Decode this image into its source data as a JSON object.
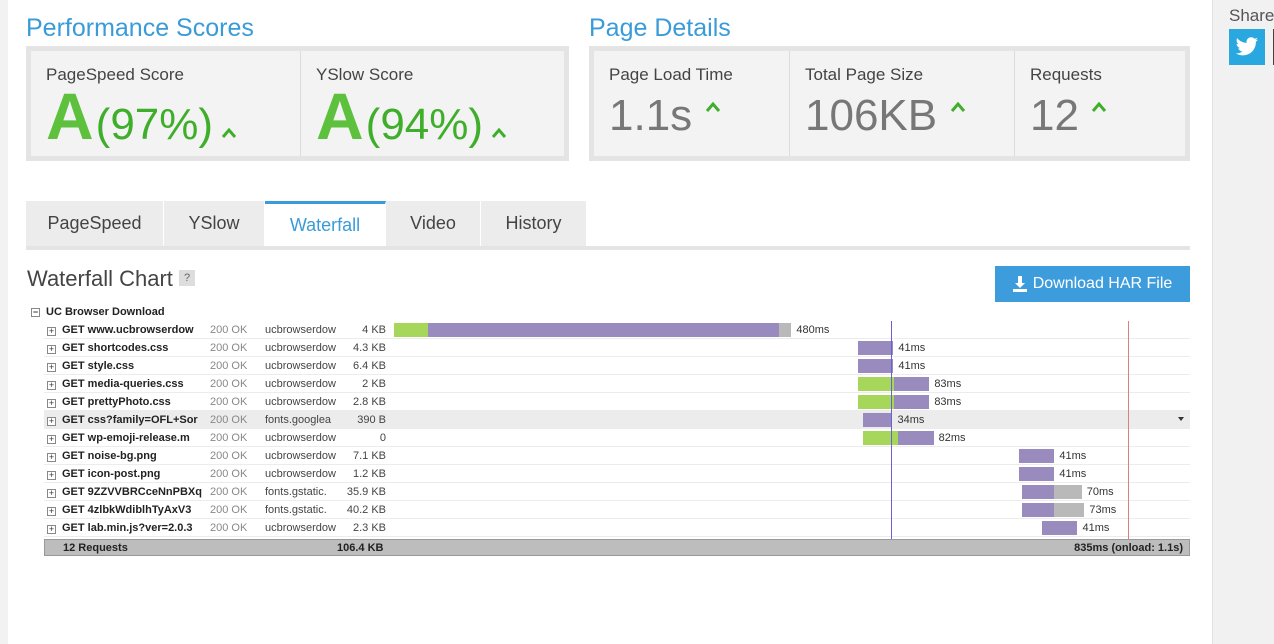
{
  "performance": {
    "title": "Performance Scores",
    "pagespeed": {
      "label": "PageSpeed Score",
      "grade": "A",
      "percent": "(97%)"
    },
    "yslow": {
      "label": "YSlow Score",
      "grade": "A",
      "percent": "(94%)"
    }
  },
  "details": {
    "title": "Page Details",
    "load_time": {
      "label": "Page Load Time",
      "value": "1.1s"
    },
    "page_size": {
      "label": "Total Page Size",
      "value": "106KB"
    },
    "requests": {
      "label": "Requests",
      "value": "12"
    }
  },
  "tabs": [
    {
      "label": "PageSpeed",
      "active": false
    },
    {
      "label": "YSlow",
      "active": false
    },
    {
      "label": "Waterfall",
      "active": true
    },
    {
      "label": "Video",
      "active": false
    },
    {
      "label": "History",
      "active": false
    }
  ],
  "waterfall": {
    "title": "Waterfall Chart",
    "help": "?",
    "download_label": "Download HAR File",
    "root_label": "UC Browser Download",
    "timeline_start_ms": 0,
    "timeline_end_ms": 835,
    "dom_loaded_ms": 580,
    "onload_ms": 1100,
    "rows": [
      {
        "url": "GET www.ucbrowserdow",
        "status": "200 OK",
        "domain": "ucbrowserdow",
        "size": "4 KB",
        "start": 0,
        "connect": 40,
        "wait": 410,
        "recv": 14,
        "timing": "480ms"
      },
      {
        "url": "GET shortcodes.css",
        "status": "200 OK",
        "domain": "ucbrowserdow",
        "size": "4.3 KB",
        "start": 542,
        "connect": 0,
        "wait": 41,
        "recv": 0,
        "timing": "41ms"
      },
      {
        "url": "GET style.css",
        "status": "200 OK",
        "domain": "ucbrowserdow",
        "size": "6.4 KB",
        "start": 542,
        "connect": 0,
        "wait": 41,
        "recv": 0,
        "timing": "41ms"
      },
      {
        "url": "GET media-queries.css",
        "status": "200 OK",
        "domain": "ucbrowserdow",
        "size": "2 KB",
        "start": 542,
        "connect": 42,
        "wait": 41,
        "recv": 0,
        "timing": "83ms"
      },
      {
        "url": "GET prettyPhoto.css",
        "status": "200 OK",
        "domain": "ucbrowserdow",
        "size": "2.8 KB",
        "start": 542,
        "connect": 42,
        "wait": 41,
        "recv": 0,
        "timing": "83ms"
      },
      {
        "url": "GET css?family=OFL+Sor",
        "status": "200 OK",
        "domain": "fonts.googlea",
        "size": "390 B",
        "start": 548,
        "connect": 0,
        "wait": 34,
        "recv": 0,
        "timing": "34ms",
        "highlight": true
      },
      {
        "url": "GET wp-emoji-release.m",
        "status": "200 OK",
        "domain": "ucbrowserdow",
        "size": "0",
        "start": 548,
        "connect": 40,
        "wait": 42,
        "recv": 0,
        "timing": "82ms"
      },
      {
        "url": "GET noise-bg.png",
        "status": "200 OK",
        "domain": "ucbrowserdow",
        "size": "7.1 KB",
        "start": 730,
        "connect": 0,
        "wait": 41,
        "recv": 0,
        "timing": "41ms"
      },
      {
        "url": "GET icon-post.png",
        "status": "200 OK",
        "domain": "ucbrowserdow",
        "size": "1.2 KB",
        "start": 730,
        "connect": 0,
        "wait": 41,
        "recv": 0,
        "timing": "41ms"
      },
      {
        "url": "GET 9ZZVVBRCceNnPBXq",
        "status": "200 OK",
        "domain": "fonts.gstatic.",
        "size": "35.9 KB",
        "start": 733,
        "connect": 0,
        "wait": 38,
        "recv": 32,
        "timing": "70ms"
      },
      {
        "url": "GET 4zlbkWdiblhTyAxV3",
        "status": "200 OK",
        "domain": "fonts.gstatic.",
        "size": "40.2 KB",
        "start": 733,
        "connect": 0,
        "wait": 38,
        "recv": 35,
        "timing": "73ms"
      },
      {
        "url": "GET lab.min.js?ver=2.0.3",
        "status": "200 OK",
        "domain": "ucbrowserdow",
        "size": "2.3 KB",
        "start": 757,
        "connect": 0,
        "wait": 41,
        "recv": 0,
        "timing": "41ms"
      }
    ],
    "summary": {
      "requests": "12 Requests",
      "size": "106.4 KB",
      "time": "835ms (onload: 1.1s)"
    }
  },
  "sidebar": {
    "share_label": "Share"
  },
  "colors": {
    "accent": "#3a9bd9",
    "grade_green": "#5dc13d",
    "connect": "#a6d65a",
    "wait": "#9a8bbf",
    "receive": "#b9b9b9",
    "dom_line": "#6a62d4",
    "onload_line": "#d98080"
  }
}
